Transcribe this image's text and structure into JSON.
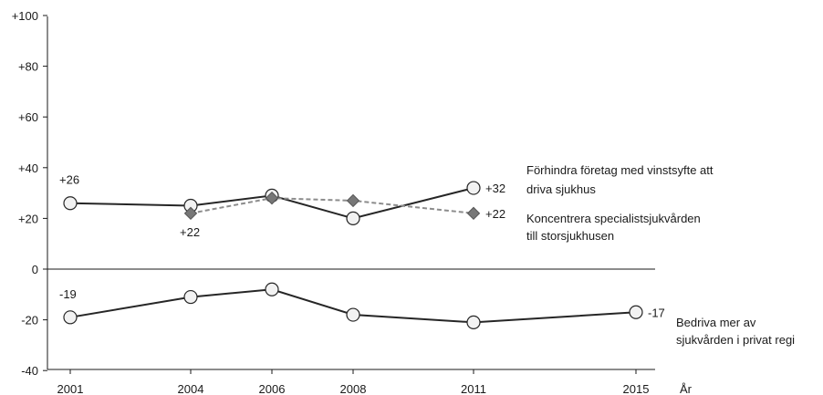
{
  "chart_data": {
    "type": "line",
    "title": "",
    "xlabel": "År",
    "ylabel": "",
    "ylim": [
      -40,
      100
    ],
    "xlim": [
      2001,
      2015
    ],
    "grid": false,
    "x_ticks": [
      "2001",
      "2004",
      "2006",
      "2008",
      "2011",
      "2015"
    ],
    "y_ticks": [
      "+100",
      "+80",
      "+60",
      "+40",
      "+20",
      "0",
      "-20",
      "-40"
    ],
    "series": [
      {
        "name": "Förhindra företag med vinstsyfte att driva sjukhus",
        "name_lines": [
          "Förhindra företag med vinstsyfte att",
          "driva sjukhus"
        ],
        "style": "solid",
        "marker": "circle",
        "color": "#262626",
        "points": [
          {
            "x": 2001,
            "y": 26
          },
          {
            "x": 2004,
            "y": 25
          },
          {
            "x": 2006,
            "y": 29
          },
          {
            "x": 2008,
            "y": 20
          },
          {
            "x": 2011,
            "y": 32
          }
        ],
        "start_label": "+26",
        "end_label": "+32"
      },
      {
        "name": "Koncentrera specialistsjukvården till storsjukhusen",
        "name_lines": [
          "Koncentrera specialistsjukvården",
          "till storsjukhusen"
        ],
        "style": "dashed",
        "marker": "diamond",
        "color": "#8c8c8c",
        "points": [
          {
            "x": 2004,
            "y": 22
          },
          {
            "x": 2006,
            "y": 28
          },
          {
            "x": 2008,
            "y": 27
          },
          {
            "x": 2011,
            "y": 22
          }
        ],
        "start_label": "+22",
        "end_label": "+22"
      },
      {
        "name": "Bedriva mer av sjukvården i privat regi",
        "name_lines": [
          "Bedriva mer av",
          "sjukvården i privat regi"
        ],
        "style": "solid",
        "marker": "circle",
        "color": "#262626",
        "points": [
          {
            "x": 2001,
            "y": -19
          },
          {
            "x": 2004,
            "y": -11
          },
          {
            "x": 2006,
            "y": -8
          },
          {
            "x": 2008,
            "y": -18
          },
          {
            "x": 2011,
            "y": -21
          },
          {
            "x": 2015,
            "y": -17
          }
        ],
        "start_label": "-19",
        "end_label": "-17"
      }
    ]
  }
}
